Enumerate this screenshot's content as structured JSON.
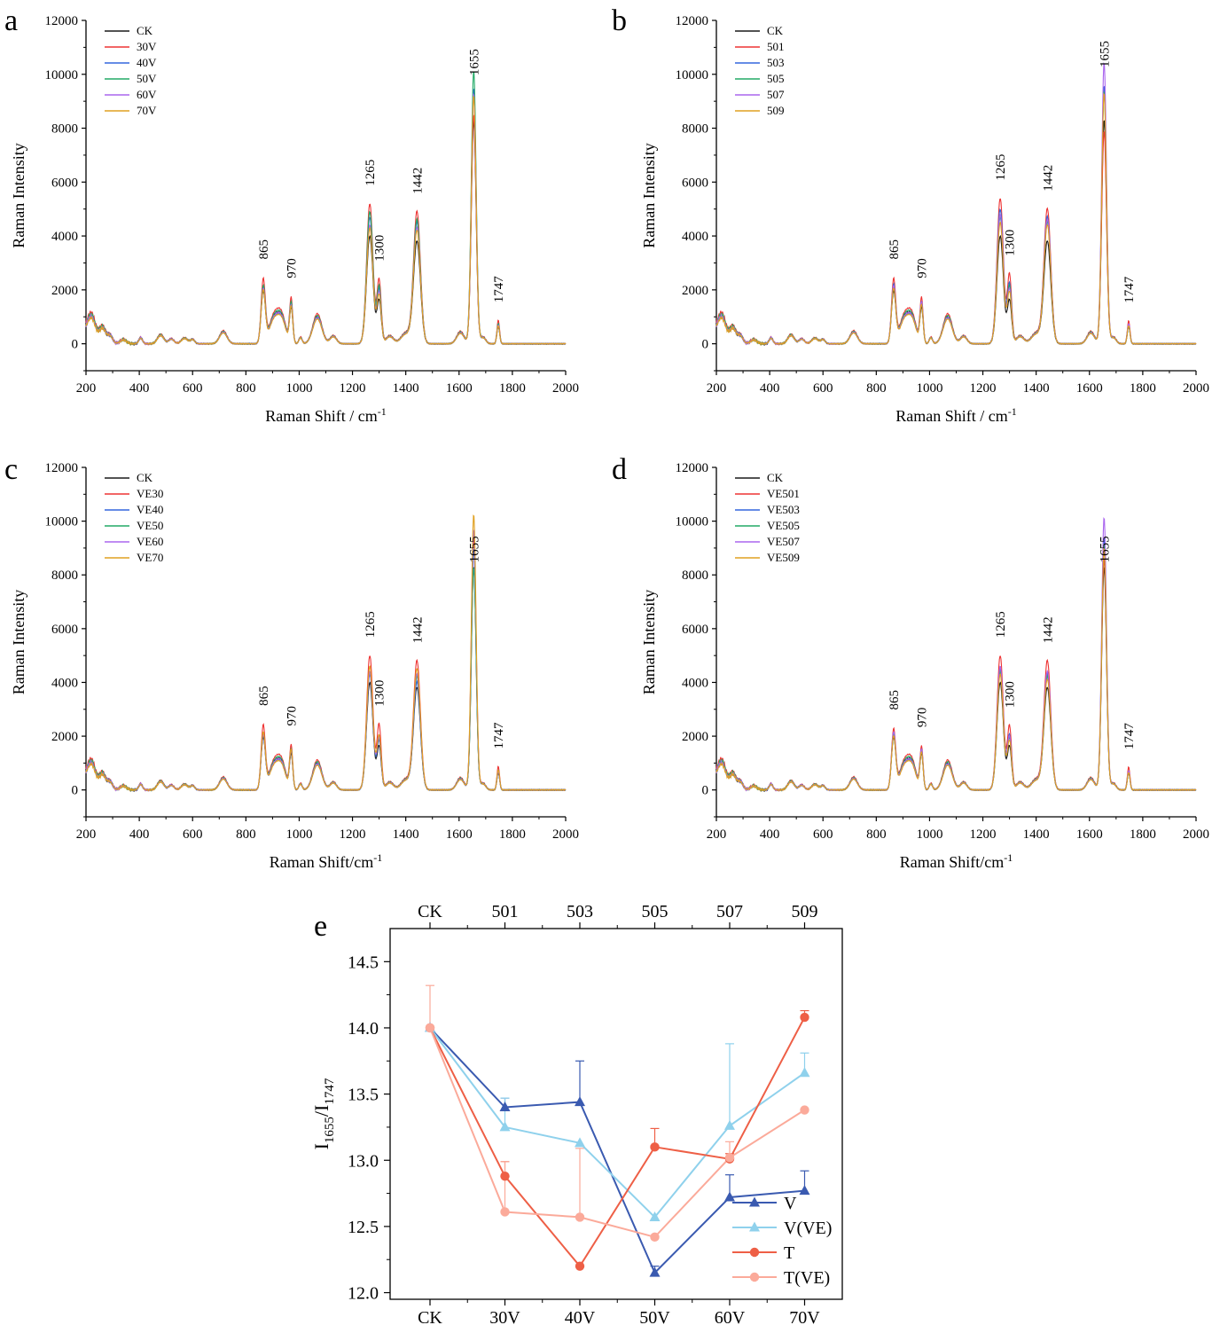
{
  "panels": [
    {
      "letter": "a",
      "ylabel": "Raman Intensity",
      "xlabel": "Raman Shift / cm",
      "xlabel_sup": "-1",
      "legend": [
        "CK",
        "30V",
        "40V",
        "50V",
        "60V",
        "70V"
      ],
      "peaks": [
        "865",
        "970",
        "1265",
        "1300",
        "1442",
        "1655",
        "1747"
      ]
    },
    {
      "letter": "b",
      "ylabel": "Raman Intensity",
      "xlabel": "Raman Shift / cm",
      "xlabel_sup": "-1",
      "legend": [
        "CK",
        "501",
        "503",
        "505",
        "507",
        "509"
      ],
      "peaks": [
        "865",
        "970",
        "1265",
        "1300",
        "1442",
        "1655",
        "1747"
      ]
    },
    {
      "letter": "c",
      "ylabel": "Raman Intensity",
      "xlabel": "Raman Shift/cm",
      "xlabel_sup": "-1",
      "legend": [
        "CK",
        "VE30",
        "VE40",
        "VE50",
        "VE60",
        "VE70"
      ],
      "peaks": [
        "865",
        "970",
        "1265",
        "1300",
        "1442",
        "1655",
        "1747"
      ]
    },
    {
      "letter": "d",
      "ylabel": "Raman Intensity",
      "xlabel": "Raman Shift/cm",
      "xlabel_sup": "-1",
      "legend": [
        "CK",
        "VE501",
        "VE503",
        "VE505",
        "VE507",
        "VE509"
      ],
      "peaks": [
        "865",
        "970",
        "1265",
        "1300",
        "1442",
        "1655",
        "1747"
      ]
    }
  ],
  "spectra_colors": [
    "#1a1a1a",
    "#ee3333",
    "#3366dd",
    "#22aa66",
    "#aa66ee",
    "#e0a020"
  ],
  "panel_e": {
    "letter": "e",
    "ylabel_main": "I",
    "ylabel_sub1": "1655",
    "ylabel_sep": "/I",
    "ylabel_sub2": "1747"
  },
  "chart_data": [
    {
      "type": "line",
      "panel": "a",
      "xlabel": "Raman Shift / cm-1",
      "ylabel": "Raman Intensity",
      "xlim": [
        200,
        2000
      ],
      "ylim": [
        -1000,
        12000
      ],
      "x_ticks": [
        200,
        400,
        600,
        800,
        1000,
        1200,
        1400,
        1600,
        1800,
        2000
      ],
      "y_ticks": [
        0,
        2000,
        4000,
        6000,
        8000,
        10000,
        12000
      ],
      "legend_position": "top-left",
      "peak_annotations": [
        865,
        970,
        1265,
        1300,
        1442,
        1655,
        1747
      ],
      "series": [
        {
          "name": "CK",
          "peaks": {
            "865": 1900,
            "970": 1300,
            "1265": 4000,
            "1300": 1600,
            "1442": 3800,
            "1655": 8300,
            "1747": 650
          }
        },
        {
          "name": "30V",
          "peaks": {
            "865": 2350,
            "970": 1650,
            "1265": 5200,
            "1300": 2350,
            "1442": 4900,
            "1655": 8500,
            "1747": 870
          }
        },
        {
          "name": "40V",
          "peaks": {
            "865": 2050,
            "970": 1450,
            "1265": 4700,
            "1300": 2000,
            "1442": 4500,
            "1655": 9500,
            "1747": 720
          }
        },
        {
          "name": "50V",
          "peaks": {
            "865": 2100,
            "970": 1500,
            "1265": 4900,
            "1300": 2100,
            "1442": 4600,
            "1655": 10150,
            "1747": 750
          }
        },
        {
          "name": "60V",
          "peaks": {
            "865": 2000,
            "970": 1400,
            "1265": 4400,
            "1300": 1900,
            "1442": 4300,
            "1655": 9300,
            "1747": 700
          }
        },
        {
          "name": "70V",
          "peaks": {
            "865": 1950,
            "970": 1350,
            "1265": 4300,
            "1300": 1800,
            "1442": 4200,
            "1655": 9200,
            "1747": 680
          }
        }
      ]
    },
    {
      "type": "line",
      "panel": "b",
      "xlabel": "Raman Shift / cm-1",
      "ylabel": "Raman Intensity",
      "xlim": [
        200,
        2000
      ],
      "ylim": [
        -1000,
        12000
      ],
      "x_ticks": [
        200,
        400,
        600,
        800,
        1000,
        1200,
        1400,
        1600,
        1800,
        2000
      ],
      "y_ticks": [
        0,
        2000,
        4000,
        6000,
        8000,
        10000,
        12000
      ],
      "legend_position": "top-left",
      "peak_annotations": [
        865,
        970,
        1265,
        1300,
        1442,
        1655,
        1747
      ],
      "series": [
        {
          "name": "CK",
          "peaks": {
            "865": 1900,
            "970": 1300,
            "1265": 4000,
            "1300": 1600,
            "1442": 3800,
            "1655": 8300,
            "1747": 650
          }
        },
        {
          "name": "501",
          "peaks": {
            "865": 2350,
            "970": 1650,
            "1265": 5400,
            "1300": 2550,
            "1442": 5000,
            "1655": 7900,
            "1747": 850
          }
        },
        {
          "name": "503",
          "peaks": {
            "865": 2150,
            "970": 1500,
            "1265": 5000,
            "1300": 2200,
            "1442": 4700,
            "1655": 9600,
            "1747": 720
          }
        },
        {
          "name": "505",
          "peaks": {
            "865": 2050,
            "970": 1450,
            "1265": 4700,
            "1300": 2100,
            "1442": 4500,
            "1655": 9400,
            "1747": 700
          }
        },
        {
          "name": "507",
          "peaks": {
            "865": 2100,
            "970": 1500,
            "1265": 4800,
            "1300": 2000,
            "1442": 4600,
            "1655": 10450,
            "1747": 750
          }
        },
        {
          "name": "509",
          "peaks": {
            "865": 2000,
            "970": 1400,
            "1265": 4500,
            "1300": 1900,
            "1442": 4400,
            "1655": 9300,
            "1747": 680
          }
        }
      ]
    },
    {
      "type": "line",
      "panel": "c",
      "xlabel": "Raman Shift/cm-1",
      "ylabel": "Raman Intensity",
      "xlim": [
        200,
        2000
      ],
      "ylim": [
        -1000,
        12000
      ],
      "x_ticks": [
        200,
        400,
        600,
        800,
        1000,
        1200,
        1400,
        1600,
        1800,
        2000
      ],
      "y_ticks": [
        0,
        2000,
        4000,
        6000,
        8000,
        10000,
        12000
      ],
      "legend_position": "top-left",
      "peak_annotations": [
        865,
        970,
        1265,
        1300,
        1442,
        1655,
        1747
      ],
      "series": [
        {
          "name": "CK",
          "peaks": {
            "865": 1900,
            "970": 1300,
            "1265": 4000,
            "1300": 1600,
            "1442": 3800,
            "1655": 8300,
            "1747": 650
          }
        },
        {
          "name": "VE30",
          "peaks": {
            "865": 2350,
            "970": 1600,
            "1265": 5000,
            "1300": 2400,
            "1442": 4800,
            "1655": 9400,
            "1747": 870
          }
        },
        {
          "name": "VE40",
          "peaks": {
            "865": 2000,
            "970": 1400,
            "1265": 4300,
            "1300": 1800,
            "1442": 4000,
            "1655": 9000,
            "1747": 700
          }
        },
        {
          "name": "VE50",
          "peaks": {
            "865": 2050,
            "970": 1450,
            "1265": 4400,
            "1300": 1900,
            "1442": 4200,
            "1655": 8300,
            "1747": 720
          }
        },
        {
          "name": "VE60",
          "peaks": {
            "865": 2000,
            "970": 1400,
            "1265": 4400,
            "1300": 1900,
            "1442": 4300,
            "1655": 9700,
            "1747": 700
          }
        },
        {
          "name": "VE70",
          "peaks": {
            "865": 2100,
            "970": 1450,
            "1265": 4600,
            "1300": 2000,
            "1442": 4500,
            "1655": 10250,
            "1747": 750
          }
        }
      ]
    },
    {
      "type": "line",
      "panel": "d",
      "xlabel": "Raman Shift/cm-1",
      "ylabel": "Raman Intensity",
      "xlim": [
        200,
        2000
      ],
      "ylim": [
        -1000,
        12000
      ],
      "x_ticks": [
        200,
        400,
        600,
        800,
        1000,
        1200,
        1400,
        1600,
        1800,
        2000
      ],
      "y_ticks": [
        0,
        2000,
        4000,
        6000,
        8000,
        10000,
        12000
      ],
      "legend_position": "top-left",
      "peak_annotations": [
        865,
        970,
        1265,
        1300,
        1442,
        1655,
        1747
      ],
      "series": [
        {
          "name": "CK",
          "peaks": {
            "865": 1900,
            "970": 1300,
            "1265": 4000,
            "1300": 1600,
            "1442": 3800,
            "1655": 8300,
            "1747": 650
          }
        },
        {
          "name": "VE501",
          "peaks": {
            "865": 2200,
            "970": 1550,
            "1265": 5000,
            "1300": 2350,
            "1442": 4800,
            "1655": 8600,
            "1747": 850
          }
        },
        {
          "name": "VE503",
          "peaks": {
            "865": 2050,
            "970": 1450,
            "1265": 4500,
            "1300": 2000,
            "1442": 4300,
            "1655": 9400,
            "1747": 700
          }
        },
        {
          "name": "VE505",
          "peaks": {
            "865": 2000,
            "970": 1400,
            "1265": 4400,
            "1300": 1900,
            "1442": 4200,
            "1655": 9200,
            "1747": 680
          }
        },
        {
          "name": "VE507",
          "peaks": {
            "865": 2100,
            "970": 1450,
            "1265": 4600,
            "1300": 1950,
            "1442": 4400,
            "1655": 10150,
            "1747": 720
          }
        },
        {
          "name": "VE509",
          "peaks": {
            "865": 1950,
            "970": 1350,
            "1265": 4300,
            "1300": 1800,
            "1442": 4100,
            "1655": 9000,
            "1747": 660
          }
        }
      ]
    },
    {
      "type": "line",
      "panel": "e",
      "ylabel": "I1655/I1747",
      "categories_bottom": [
        "CK",
        "30V",
        "40V",
        "50V",
        "60V",
        "70V"
      ],
      "categories_top": [
        "CK",
        "501",
        "503",
        "505",
        "507",
        "509"
      ],
      "ylim": [
        11.95,
        14.75
      ],
      "y_ticks": [
        "12.0",
        "12.5",
        "13.0",
        "13.5",
        "14.0",
        "14.5"
      ],
      "legend_position": "bottom-right",
      "series": [
        {
          "name": "V",
          "color": "#3a5ab0",
          "marker": "triangle",
          "values": [
            14.0,
            13.4,
            13.44,
            12.15,
            12.72,
            12.77
          ],
          "errors": [
            0,
            0.07,
            0.31,
            0.05,
            0.17,
            0.15
          ]
        },
        {
          "name": "V(VE)",
          "color": "#8fd1ec",
          "marker": "triangle",
          "values": [
            14.0,
            13.25,
            13.13,
            12.57,
            13.26,
            13.66
          ],
          "errors": [
            0,
            0.22,
            0,
            0,
            0.62,
            0.15
          ]
        },
        {
          "name": "T",
          "color": "#ee5f46",
          "marker": "circle",
          "values": [
            14.0,
            12.88,
            12.2,
            13.1,
            13.01,
            14.08
          ],
          "errors": [
            0,
            0.11,
            0,
            0.14,
            0.04,
            0.05
          ]
        },
        {
          "name": "T(VE)",
          "color": "#fbaa9a",
          "marker": "circle",
          "values": [
            14.0,
            12.61,
            12.57,
            12.42,
            13.02,
            13.38
          ],
          "errors": [
            0.32,
            0.38,
            0.52,
            0,
            0.12,
            0
          ]
        }
      ]
    }
  ]
}
